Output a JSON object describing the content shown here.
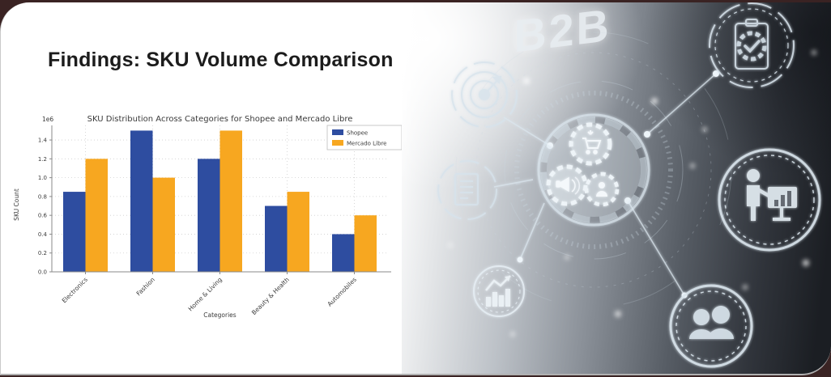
{
  "frame": {
    "background_color": "#3a2323",
    "card_color": "#ffffff",
    "card_edge_color": "#b0b0b0"
  },
  "slide": {
    "title": "Findings: SKU Volume Comparison",
    "title_color": "#1c1c1c"
  },
  "chart_data": {
    "type": "bar",
    "title": "SKU Distribution Across Categories for Shopee and Mercado Libre",
    "xlabel": "Categories",
    "ylabel": "SKU Count",
    "offset_label": "1e6",
    "categories": [
      "Electronics",
      "Fashion",
      "Home & Living",
      "Beauty & Health",
      "Automobiles"
    ],
    "series": [
      {
        "name": "Shopee",
        "color": "#2e4da0",
        "values": [
          850000,
          1500000,
          1200000,
          700000,
          400000
        ]
      },
      {
        "name": "Mercado Libre",
        "color": "#f7a720",
        "values": [
          1200000,
          1000000,
          1500000,
          850000,
          600000
        ]
      }
    ],
    "ylim": [
      0,
      1550000
    ],
    "yticks": [
      0,
      200000,
      400000,
      600000,
      800000,
      1000000,
      1200000,
      1400000
    ],
    "grid": true,
    "legend_position": "upper right",
    "text_color": "#3a3a3a",
    "grid_color": "#cfcfcf",
    "spine_color": "#8a8a8a"
  },
  "right_panel": {
    "headline": "B2B",
    "icon_color": "#d7e3ec",
    "icons": [
      "target-icon",
      "document-icon",
      "bar-chart-trend-icon",
      "hub-cart-gear-icon",
      "hub-megaphone-gear-icon",
      "hub-person-gear-icon",
      "clipboard-check-icon",
      "presenter-chart-icon",
      "team-icon"
    ]
  }
}
